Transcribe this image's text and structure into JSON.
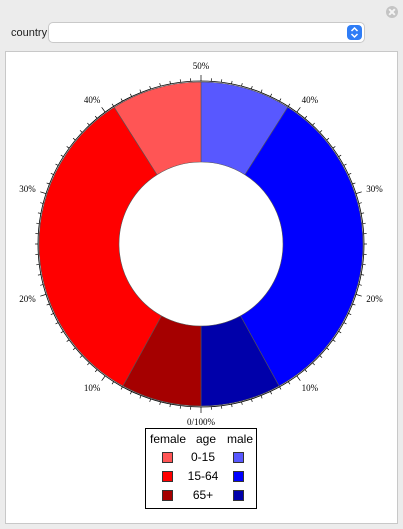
{
  "country": {
    "label": "country",
    "selected": ""
  },
  "chart_data": {
    "type": "pie",
    "style": "donut",
    "slices": [
      {
        "group": "male",
        "age": "0-15",
        "value": 9,
        "color": "#5858ff"
      },
      {
        "group": "male",
        "age": "15-64",
        "value": 33,
        "color": "#0000ff"
      },
      {
        "group": "male",
        "age": "65+",
        "value": 8,
        "color": "#0000aa"
      },
      {
        "group": "female",
        "age": "65+",
        "value": 8,
        "color": "#a50000"
      },
      {
        "group": "female",
        "age": "15-64",
        "value": 33,
        "color": "#ff0000"
      },
      {
        "group": "female",
        "age": "0-15",
        "value": 9,
        "color": "#ff5555"
      }
    ],
    "scale_labels": {
      "top": "50%",
      "bottom": "0/100%",
      "right": [
        "40%",
        "30%",
        "20%",
        "10%"
      ],
      "left": [
        "40%",
        "30%",
        "20%",
        "10%"
      ]
    },
    "legend": {
      "headers": {
        "female": "female",
        "age": "age",
        "male": "male"
      },
      "rows": [
        {
          "age": "0-15",
          "female_color": "#ff5555",
          "male_color": "#5858ff"
        },
        {
          "age": "15-64",
          "female_color": "#ff0000",
          "male_color": "#0000ff"
        },
        {
          "age": "65+",
          "female_color": "#a50000",
          "male_color": "#0000aa"
        }
      ]
    }
  }
}
